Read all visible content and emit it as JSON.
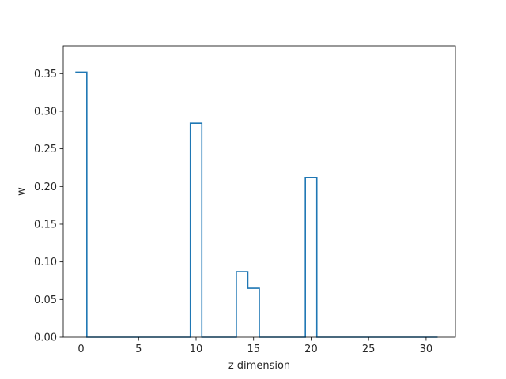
{
  "chart_data": {
    "type": "line",
    "drawstyle": "steps-mid",
    "xlabel": "z dimension",
    "ylabel": "w",
    "xlim": [
      -1.55,
      32.55
    ],
    "ylim": [
      0,
      0.387
    ],
    "xticks": [
      0,
      5,
      10,
      15,
      20,
      25,
      30
    ],
    "yticks": [
      0.0,
      0.05,
      0.1,
      0.15,
      0.2,
      0.25,
      0.3,
      0.35
    ],
    "ytick_labels": [
      "0.00",
      "0.05",
      "0.10",
      "0.15",
      "0.20",
      "0.25",
      "0.30",
      "0.35"
    ],
    "grid": false,
    "series": [
      {
        "color": "#1f77b4",
        "x": [
          0,
          1,
          2,
          3,
          4,
          5,
          6,
          7,
          8,
          9,
          10,
          11,
          12,
          13,
          14,
          15,
          16,
          17,
          18,
          19,
          20,
          21,
          22,
          23,
          24,
          25,
          26,
          27,
          28,
          29,
          30,
          31
        ],
        "y": [
          0.352,
          0,
          0,
          0,
          0,
          0,
          0,
          0,
          0,
          0,
          0.284,
          0,
          0,
          0,
          0.087,
          0.065,
          0,
          0,
          0,
          0,
          0.212,
          0,
          0,
          0,
          0,
          0,
          0,
          0,
          0,
          0,
          0,
          0
        ]
      }
    ]
  }
}
